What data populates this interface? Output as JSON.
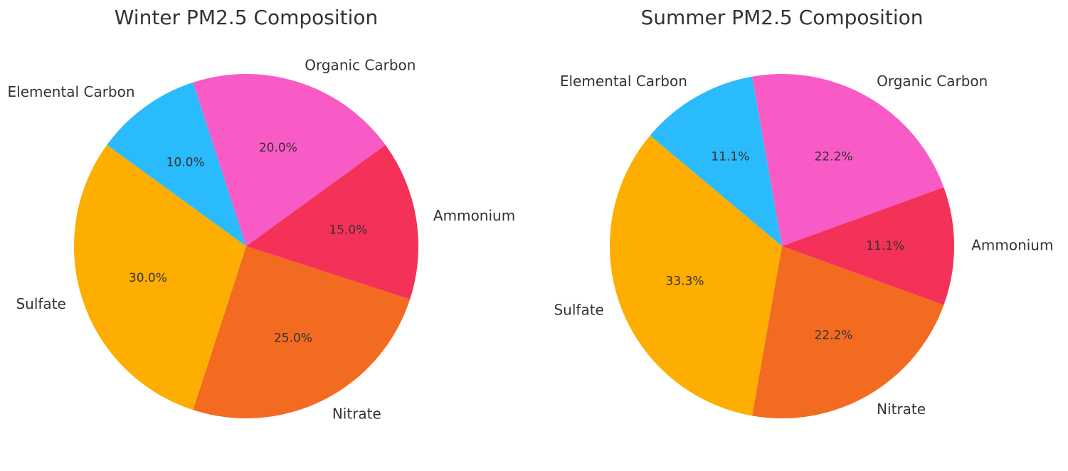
{
  "chart_data": [
    {
      "type": "pie",
      "title": "Winter PM2.5 Composition",
      "categories": [
        "Organic Carbon",
        "Ammonium",
        "Nitrate",
        "Sulfate",
        "Elemental Carbon"
      ],
      "values": [
        20.0,
        15.0,
        25.0,
        30.0,
        10.0
      ],
      "percent_labels": [
        "20.0%",
        "15.0%",
        "25.0%",
        "30.0%",
        "10.0%"
      ],
      "colors": [
        "#F95BC6",
        "#F43158",
        "#F26B21",
        "#FEAE00",
        "#2ABBFC"
      ],
      "start_angle_deg": 108,
      "direction": "clockwise"
    },
    {
      "type": "pie",
      "title": "Summer PM2.5 Composition",
      "categories": [
        "Organic Carbon",
        "Ammonium",
        "Nitrate",
        "Sulfate",
        "Elemental Carbon"
      ],
      "values": [
        22.2,
        11.1,
        22.2,
        33.3,
        11.1
      ],
      "percent_labels": [
        "22.2%",
        "11.1%",
        "22.2%",
        "33.3%",
        "11.1%"
      ],
      "colors": [
        "#F95BC6",
        "#F43158",
        "#F26B21",
        "#FEAE00",
        "#2ABBFC"
      ],
      "start_angle_deg": 100,
      "direction": "clockwise"
    }
  ]
}
